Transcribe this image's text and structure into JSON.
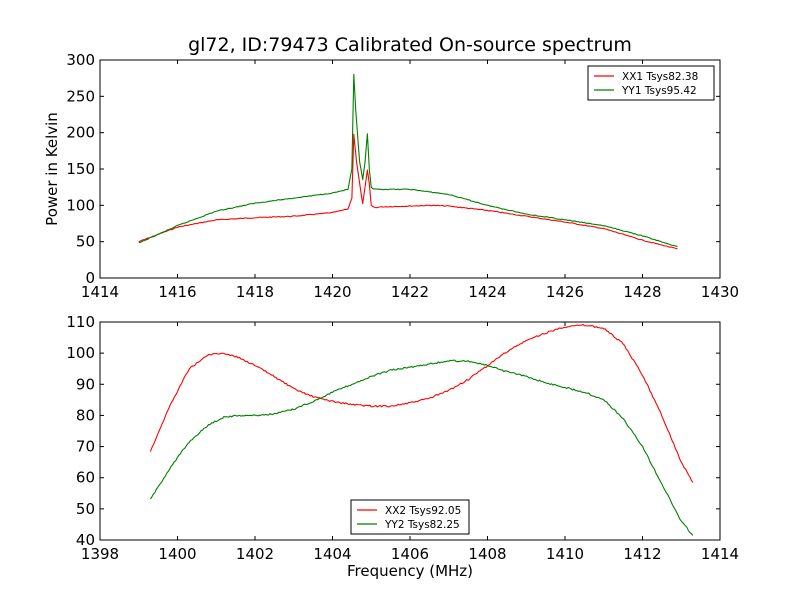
{
  "chart_data": [
    {
      "type": "line",
      "title": "gl72, ID:79473 Calibrated On-source spectrum",
      "xlabel": "",
      "ylabel": "Power in Kelvin",
      "xlim": [
        1414,
        1430
      ],
      "ylim": [
        0,
        300
      ],
      "xticks": [
        "1414",
        "1416",
        "1418",
        "1420",
        "1422",
        "1424",
        "1426",
        "1428",
        "1430"
      ],
      "yticks": [
        "0",
        "50",
        "100",
        "150",
        "200",
        "250",
        "300"
      ],
      "legend_position": "top-right",
      "series": [
        {
          "name": "XX1 Tsys82.38",
          "color": "#ff0000",
          "x": [
            1415.0,
            1416.0,
            1417.0,
            1418.0,
            1419.0,
            1420.0,
            1420.4,
            1420.5,
            1420.55,
            1420.62,
            1420.7,
            1420.78,
            1420.84,
            1420.9,
            1420.95,
            1421.0,
            1421.05,
            1421.1,
            1421.3,
            1422.0,
            1422.5,
            1423.0,
            1424.0,
            1425.0,
            1426.0,
            1427.0,
            1428.0,
            1428.9
          ],
          "y": [
            50,
            70,
            80,
            83,
            85,
            90,
            95,
            110,
            198,
            160,
            130,
            102,
            125,
            148,
            130,
            100,
            98,
            97,
            98,
            99,
            100,
            99,
            93,
            85,
            77,
            68,
            52,
            40
          ]
        },
        {
          "name": "YY1 Tsys95.42",
          "color": "#008000",
          "x": [
            1415.0,
            1416.0,
            1417.0,
            1418.0,
            1419.0,
            1420.0,
            1420.4,
            1420.5,
            1420.55,
            1420.6,
            1420.7,
            1420.78,
            1420.84,
            1420.9,
            1420.95,
            1421.0,
            1421.05,
            1421.1,
            1421.3,
            1422.0,
            1423.0,
            1424.0,
            1425.0,
            1426.0,
            1427.0,
            1428.0,
            1428.9
          ],
          "y": [
            48,
            72,
            92,
            103,
            110,
            117,
            122,
            150,
            280,
            230,
            160,
            135,
            160,
            198,
            150,
            125,
            122,
            122,
            122,
            122,
            115,
            100,
            88,
            80,
            72,
            58,
            43
          ]
        }
      ]
    },
    {
      "type": "line",
      "title": "",
      "xlabel": "Frequency (MHz)",
      "ylabel": "",
      "xlim": [
        1398,
        1414
      ],
      "ylim": [
        40,
        110
      ],
      "xticks": [
        "1398",
        "1400",
        "1402",
        "1404",
        "1406",
        "1408",
        "1410",
        "1412",
        "1414"
      ],
      "yticks": [
        "40",
        "50",
        "60",
        "70",
        "80",
        "90",
        "100",
        "110"
      ],
      "legend_position": "bottom-center",
      "series": [
        {
          "name": "XX2 Tsys92.05",
          "color": "#ff0000",
          "x": [
            1399.3,
            1399.8,
            1400.3,
            1400.8,
            1401.2,
            1401.6,
            1402.0,
            1402.5,
            1403.0,
            1403.5,
            1404.0,
            1404.5,
            1405.0,
            1405.5,
            1406.0,
            1406.5,
            1407.0,
            1407.5,
            1408.0,
            1408.5,
            1409.0,
            1409.5,
            1410.0,
            1410.5,
            1411.0,
            1411.5,
            1412.0,
            1412.5,
            1413.0,
            1413.3
          ],
          "y": [
            68.5,
            83,
            95,
            99.5,
            100,
            98.5,
            96,
            92.5,
            88.5,
            86,
            84.5,
            83.5,
            83,
            83,
            84,
            85.5,
            88,
            91.5,
            96,
            100.5,
            104,
            106.5,
            108.5,
            109,
            108,
            103,
            93,
            80,
            65,
            58.5
          ]
        },
        {
          "name": "YY2 Tsys82.25",
          "color": "#008000",
          "x": [
            1399.3,
            1399.8,
            1400.3,
            1400.8,
            1401.2,
            1401.6,
            1402.0,
            1402.5,
            1403.0,
            1403.5,
            1404.0,
            1404.5,
            1405.0,
            1405.5,
            1406.0,
            1406.5,
            1407.0,
            1407.5,
            1408.0,
            1408.5,
            1409.0,
            1409.5,
            1410.0,
            1410.5,
            1411.0,
            1411.5,
            1412.0,
            1412.5,
            1413.0,
            1413.3
          ],
          "y": [
            53,
            63,
            71.5,
            77,
            79.5,
            80,
            80,
            80.5,
            82,
            84.5,
            87.5,
            90,
            92.5,
            94.5,
            95.5,
            96.5,
            97.5,
            97.5,
            96,
            94,
            92.5,
            90.5,
            89,
            87.5,
            85,
            79,
            70,
            58,
            46,
            41.5
          ]
        }
      ]
    }
  ]
}
